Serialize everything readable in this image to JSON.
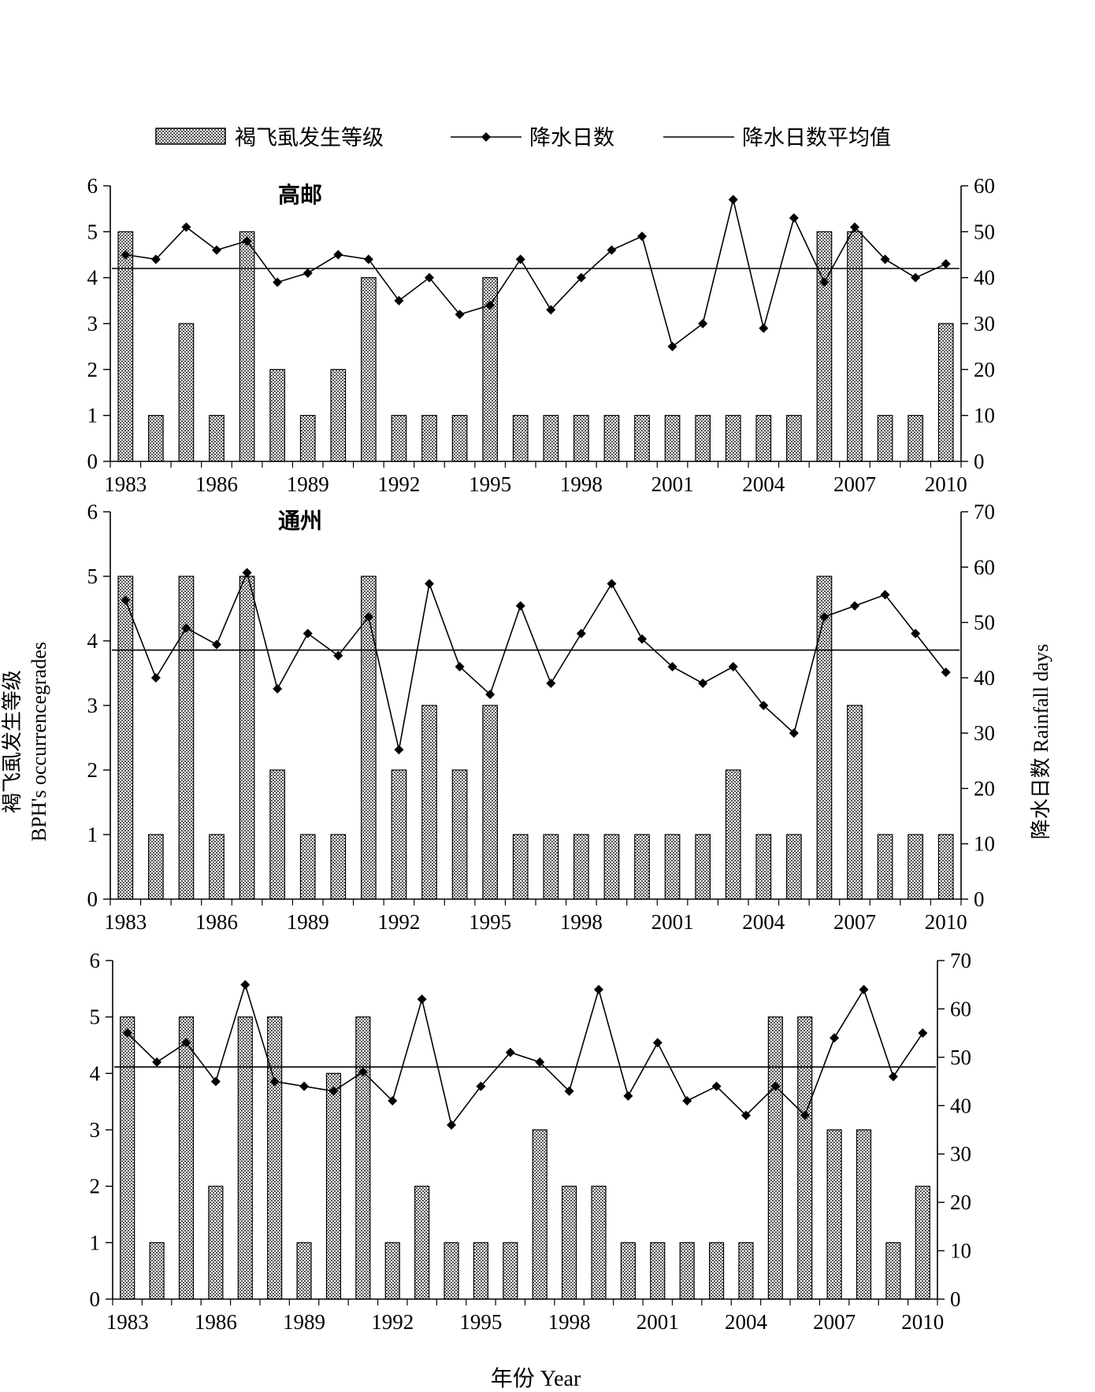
{
  "legend": {
    "bar_label": "褐飞虱发生等级",
    "line_label": "降水日数",
    "mean_label": "降水日数平均值"
  },
  "y_left_label_cn": "褐飞虱发生等级",
  "y_left_label_en": "BPH's occurrencegrades",
  "y_right_label": "降水日数 Rainfall days",
  "x_label": "年份 Year",
  "bar_fill": "#b3b3b3",
  "chart_data": [
    {
      "type": "bar",
      "title": "高邮",
      "x": [
        1983,
        1984,
        1985,
        1986,
        1987,
        1988,
        1989,
        1990,
        1991,
        1992,
        1993,
        1994,
        1995,
        1996,
        1997,
        1998,
        1999,
        2000,
        2001,
        2002,
        2003,
        2004,
        2005,
        2006,
        2007,
        2008,
        2009,
        2010
      ],
      "x_ticks": [
        1983,
        1986,
        1989,
        1992,
        1995,
        1998,
        2001,
        2004,
        2007,
        2010
      ],
      "series": [
        {
          "name": "褐飞虱发生等级",
          "axis": "left",
          "type": "bar",
          "values": [
            5,
            1,
            3,
            1,
            5,
            2,
            1,
            2,
            4,
            1,
            1,
            1,
            4,
            1,
            1,
            1,
            1,
            1,
            1,
            1,
            1,
            1,
            1,
            5,
            5,
            1,
            1,
            3
          ]
        },
        {
          "name": "降水日数",
          "axis": "right",
          "type": "line",
          "values": [
            45,
            44,
            51,
            46,
            48,
            39,
            41,
            45,
            44,
            35,
            40,
            32,
            34,
            44,
            33,
            40,
            46,
            49,
            25,
            30,
            57,
            29,
            53,
            39,
            51,
            44,
            40,
            43
          ]
        }
      ],
      "mean": 42,
      "ylim_left": [
        0,
        6
      ],
      "left_ticks": [
        0,
        1,
        2,
        3,
        4,
        5,
        6
      ],
      "ylim_right": [
        0,
        60
      ],
      "right_ticks": [
        0,
        10,
        20,
        30,
        40,
        50,
        60
      ]
    },
    {
      "type": "bar",
      "title": "通州",
      "x": [
        1983,
        1984,
        1985,
        1986,
        1987,
        1988,
        1989,
        1990,
        1991,
        1992,
        1993,
        1994,
        1995,
        1996,
        1997,
        1998,
        1999,
        2000,
        2001,
        2002,
        2003,
        2004,
        2005,
        2006,
        2007,
        2008,
        2009,
        2010
      ],
      "x_ticks": [
        1983,
        1986,
        1989,
        1992,
        1995,
        1998,
        2001,
        2004,
        2007,
        2010
      ],
      "series": [
        {
          "name": "褐飞虱发生等级",
          "axis": "left",
          "type": "bar",
          "values": [
            5,
            1,
            5,
            1,
            5,
            2,
            1,
            1,
            5,
            2,
            3,
            2,
            3,
            1,
            1,
            1,
            1,
            1,
            1,
            1,
            2,
            1,
            1,
            5,
            3,
            1,
            1,
            1
          ]
        },
        {
          "name": "降水日数",
          "axis": "right",
          "type": "line",
          "values": [
            54,
            40,
            49,
            46,
            59,
            38,
            48,
            44,
            51,
            27,
            57,
            42,
            37,
            53,
            39,
            48,
            57,
            47,
            42,
            39,
            42,
            35,
            30,
            51,
            53,
            55,
            48,
            41
          ]
        }
      ],
      "mean": 45,
      "ylim_left": [
        0,
        6
      ],
      "left_ticks": [
        0,
        1,
        2,
        3,
        4,
        5,
        6
      ],
      "ylim_right": [
        0,
        70
      ],
      "right_ticks": [
        0,
        10,
        20,
        30,
        40,
        50,
        60,
        70
      ]
    },
    {
      "type": "bar",
      "title": "",
      "x": [
        1983,
        1984,
        1985,
        1986,
        1987,
        1988,
        1989,
        1990,
        1991,
        1992,
        1993,
        1994,
        1995,
        1996,
        1997,
        1998,
        1999,
        2000,
        2001,
        2002,
        2003,
        2004,
        2005,
        2006,
        2007,
        2008,
        2009,
        2010
      ],
      "x_ticks": [
        1983,
        1986,
        1989,
        1992,
        1995,
        1998,
        2001,
        2004,
        2007,
        2010
      ],
      "series": [
        {
          "name": "褐飞虱发生等级",
          "axis": "left",
          "type": "bar",
          "values": [
            5,
            1,
            5,
            2,
            5,
            5,
            1,
            4,
            5,
            1,
            2,
            1,
            1,
            1,
            3,
            2,
            2,
            1,
            1,
            1,
            1,
            1,
            5,
            5,
            3,
            3,
            1,
            2
          ]
        },
        {
          "name": "降水日数",
          "axis": "right",
          "type": "line",
          "values": [
            55,
            49,
            53,
            45,
            65,
            45,
            44,
            43,
            47,
            41,
            62,
            36,
            44,
            51,
            49,
            43,
            64,
            42,
            53,
            41,
            44,
            38,
            44,
            38,
            54,
            64,
            46,
            55
          ]
        }
      ],
      "mean": 48,
      "ylim_left": [
        0,
        6
      ],
      "left_ticks": [
        0,
        1,
        2,
        3,
        4,
        5,
        6
      ],
      "ylim_right": [
        0,
        70
      ],
      "right_ticks": [
        0,
        10,
        20,
        30,
        40,
        50,
        60,
        70
      ]
    }
  ]
}
